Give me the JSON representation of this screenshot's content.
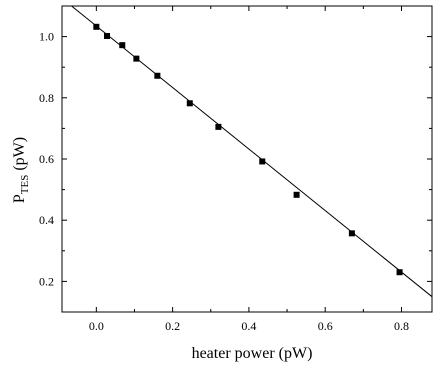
{
  "chart_data": {
    "type": "scatter",
    "xlabel": "heater power (pW)",
    "ylabel_main": "P",
    "ylabel_sub": "TES",
    "ylabel_unit": " (pW)",
    "xlim": [
      -0.09,
      0.88
    ],
    "ylim": [
      0.1,
      1.1
    ],
    "x_ticks": [
      0.0,
      0.2,
      0.4,
      0.6,
      0.8
    ],
    "x_tick_labels": [
      "0.0",
      "0.2",
      "0.4",
      "0.6",
      "0.8"
    ],
    "y_ticks": [
      0.2,
      0.4,
      0.6,
      0.8,
      1.0
    ],
    "y_tick_labels": [
      "0.2",
      "0.4",
      "0.6",
      "0.8",
      "1.0"
    ],
    "grid": false,
    "marker": "square",
    "points": [
      {
        "x": 0.0,
        "y": 1.032
      },
      {
        "x": 0.028,
        "y": 1.002
      },
      {
        "x": 0.068,
        "y": 0.972
      },
      {
        "x": 0.105,
        "y": 0.928
      },
      {
        "x": 0.16,
        "y": 0.872
      },
      {
        "x": 0.245,
        "y": 0.782
      },
      {
        "x": 0.32,
        "y": 0.705
      },
      {
        "x": 0.435,
        "y": 0.592
      },
      {
        "x": 0.525,
        "y": 0.483
      },
      {
        "x": 0.67,
        "y": 0.357
      },
      {
        "x": 0.795,
        "y": 0.23
      }
    ],
    "fit_line": {
      "x": [
        -0.065,
        0.88
      ],
      "y": [
        1.1,
        0.15
      ]
    },
    "colors": {
      "marker": "#000000",
      "line": "#000000",
      "axis": "#000000"
    }
  }
}
